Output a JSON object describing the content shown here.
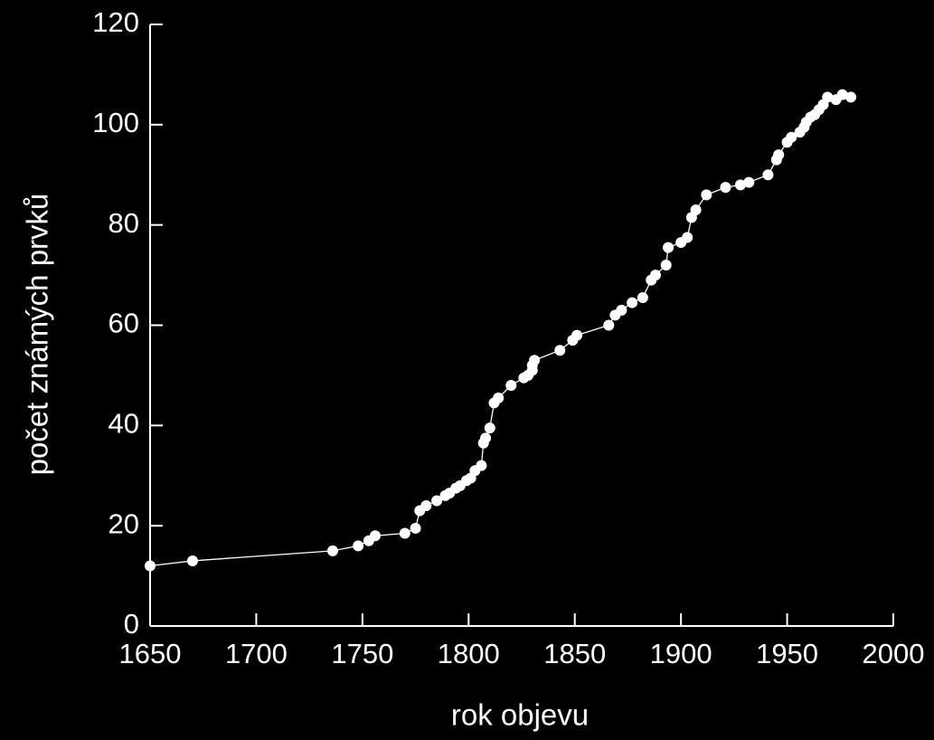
{
  "chart_data": {
    "type": "line",
    "x_label": "rok objevu",
    "y_label": "počet známých prvků",
    "color": "#ffffff",
    "x": [
      1650,
      1670,
      1736,
      1748,
      1753,
      1756,
      1770,
      1775,
      1777,
      1780,
      1785,
      1789,
      1791,
      1794,
      1796,
      1799,
      1801,
      1803,
      1806,
      1807,
      1808,
      1810,
      1812,
      1814,
      1820,
      1826,
      1828,
      1830,
      1830,
      1831,
      1843,
      1849,
      1851,
      1866,
      1869,
      1872,
      1877,
      1882,
      1886,
      1888,
      1893,
      1894,
      1900,
      1903,
      1905,
      1907,
      1912,
      1921,
      1928,
      1932,
      1941,
      1945,
      1946,
      1950,
      1952,
      1956,
      1958,
      1959,
      1961,
      1963,
      1965,
      1967,
      1969,
      1973,
      1976,
      1980
    ],
    "values": [
      12,
      13,
      15,
      16,
      17,
      18,
      18.5,
      19.5,
      23,
      24,
      25,
      26,
      26.5,
      27.5,
      28,
      29,
      29.5,
      31,
      32,
      36.5,
      37.5,
      39.5,
      44.5,
      45.5,
      48,
      49.5,
      50,
      51,
      52,
      53,
      55,
      57,
      58,
      60,
      62,
      63,
      64.5,
      65.5,
      69,
      70,
      72,
      75.5,
      76.5,
      77.5,
      81.5,
      83,
      86,
      87.5,
      88,
      88.5,
      90,
      93,
      94,
      96.5,
      97.5,
      98.5,
      99.5,
      100.5,
      101.5,
      102,
      103,
      104,
      105.5,
      105,
      106,
      105.5
    ],
    "xlim": [
      1650,
      2000
    ],
    "xticks": [
      1650,
      1700,
      1750,
      1800,
      1850,
      1900,
      1950,
      2000
    ],
    "ylim": [
      0,
      120
    ],
    "yticks": [
      0,
      20,
      40,
      60,
      80,
      100,
      120
    ]
  }
}
